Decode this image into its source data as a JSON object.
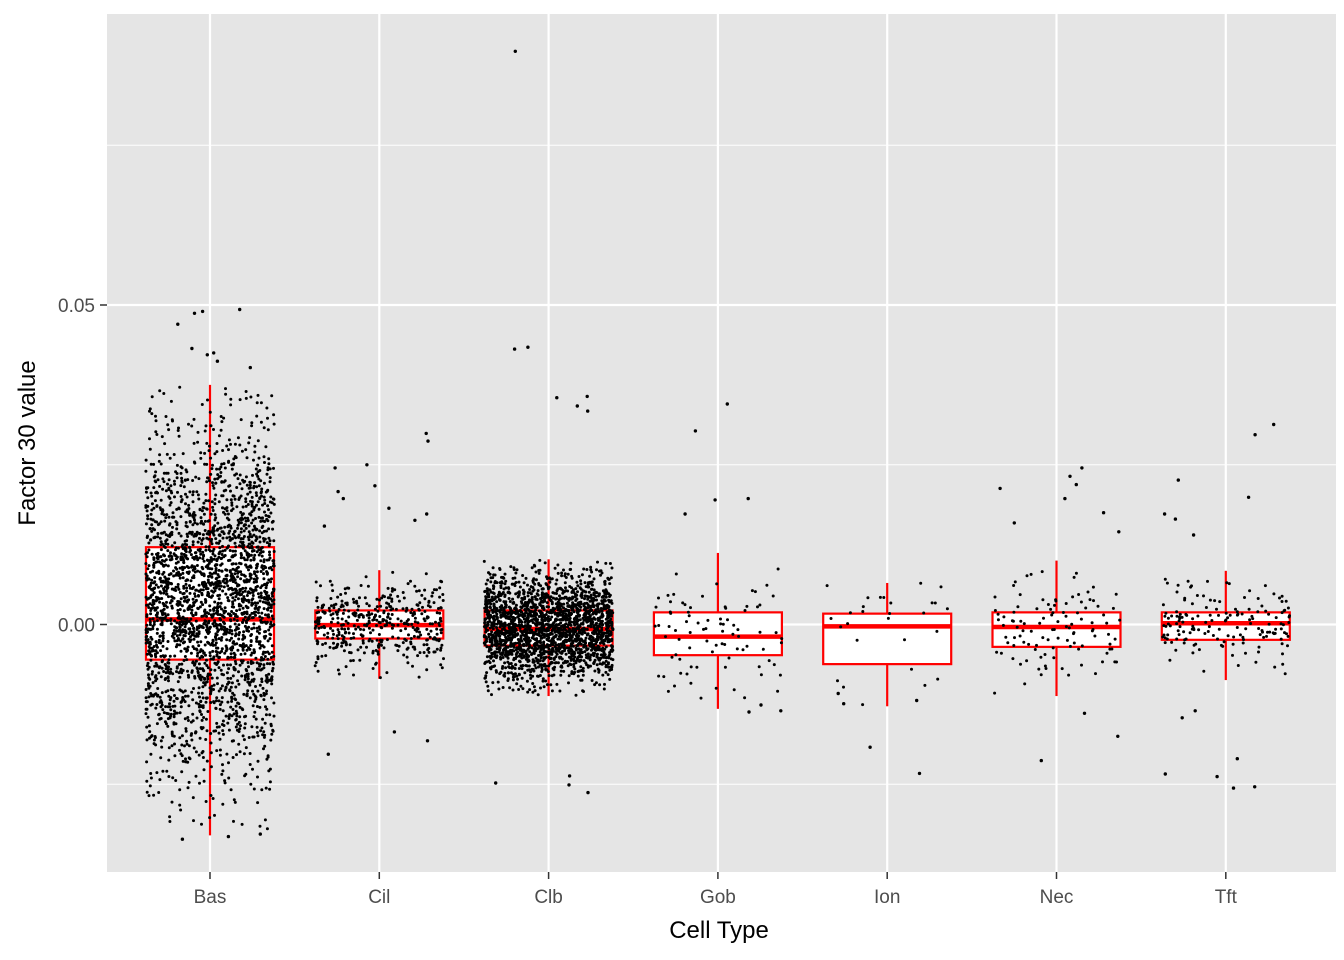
{
  "chart_data": {
    "type": "boxplot",
    "title": "",
    "xlabel": "Cell Type",
    "ylabel": "Factor 30 value",
    "categories": [
      "Bas",
      "Cil",
      "Clb",
      "Gob",
      "Ion",
      "Nec",
      "Tft"
    ],
    "y_ticks": [
      {
        "value": 0.0,
        "label": "0.00"
      },
      {
        "value": 0.05,
        "label": "0.05"
      }
    ],
    "ylim": [
      -0.039,
      0.095
    ],
    "grid": true,
    "legend": "none",
    "colors": {
      "panel": "#e5e5e5",
      "grid": "#ffffff",
      "box": "#ff0000",
      "box_fill": "#ffffff",
      "points": "#000000",
      "tick_text": "#4d4d4d"
    },
    "boxes": [
      {
        "category": "Bas",
        "q1": -0.0055,
        "median": 0.0008,
        "q3": 0.0121,
        "whisker_low": -0.033,
        "whisker_high": 0.0375,
        "n_points": 2600
      },
      {
        "category": "Cil",
        "q1": -0.0022,
        "median": -0.0001,
        "q3": 0.0022,
        "whisker_low": -0.0085,
        "whisker_high": 0.0085,
        "n_points": 420
      },
      {
        "category": "Clb",
        "q1": -0.0033,
        "median": -0.0007,
        "q3": 0.0022,
        "whisker_low": -0.0112,
        "whisker_high": 0.0102,
        "n_points": 2200
      },
      {
        "category": "Gob",
        "q1": -0.0048,
        "median": -0.0019,
        "q3": 0.0019,
        "whisker_low": -0.0132,
        "whisker_high": 0.0112,
        "n_points": 85
      },
      {
        "category": "Ion",
        "q1": -0.0062,
        "median": -0.0003,
        "q3": 0.0017,
        "whisker_low": -0.0128,
        "whisker_high": 0.0065,
        "n_points": 28
      },
      {
        "category": "Nec",
        "q1": -0.0035,
        "median": -0.0004,
        "q3": 0.0019,
        "whisker_low": -0.0112,
        "whisker_high": 0.01,
        "n_points": 110
      },
      {
        "category": "Tft",
        "q1": -0.0024,
        "median": 0.0002,
        "q3": 0.0019,
        "whisker_low": -0.0087,
        "whisker_high": 0.0084,
        "n_points": 160
      }
    ],
    "outliers": [
      {
        "category": "Bas",
        "values": [
          0.0493,
          0.049,
          0.0487,
          0.047,
          0.0425,
          0.0432,
          0.0422,
          0.0412,
          0.0402,
          -0.0336,
          -0.0332,
          -0.0328
        ]
      },
      {
        "category": "Cil",
        "values": [
          0.0299,
          0.0287,
          0.025,
          0.0245,
          0.0217,
          0.0208,
          0.0197,
          0.0182,
          0.0173,
          0.0163,
          0.0154,
          -0.0168,
          -0.0182,
          -0.0203
        ]
      },
      {
        "category": "Clb",
        "values": [
          0.0897,
          0.0434,
          0.0431,
          0.0357,
          0.0355,
          0.0342,
          0.0334,
          -0.0248,
          -0.0263,
          -0.0251,
          -0.0237
        ]
      },
      {
        "category": "Gob",
        "values": [
          0.0345,
          0.0303,
          0.0197,
          0.0195,
          0.0173,
          -0.0126,
          -0.0135,
          -0.0137
        ]
      },
      {
        "category": "Ion",
        "values": [
          -0.0192,
          -0.0233,
          -0.0124,
          -0.0119,
          -0.0108
        ]
      },
      {
        "category": "Nec",
        "values": [
          0.0245,
          0.0232,
          0.0219,
          0.0213,
          0.0197,
          0.0175,
          0.0159,
          0.0145,
          -0.0139,
          -0.0175,
          -0.0213
        ]
      },
      {
        "category": "Tft",
        "values": [
          0.0313,
          0.0297,
          0.0226,
          0.0199,
          0.0173,
          0.0165,
          0.014,
          -0.0135,
          -0.0146,
          -0.021,
          -0.0234,
          -0.0238,
          -0.0256,
          -0.0254
        ]
      }
    ]
  }
}
